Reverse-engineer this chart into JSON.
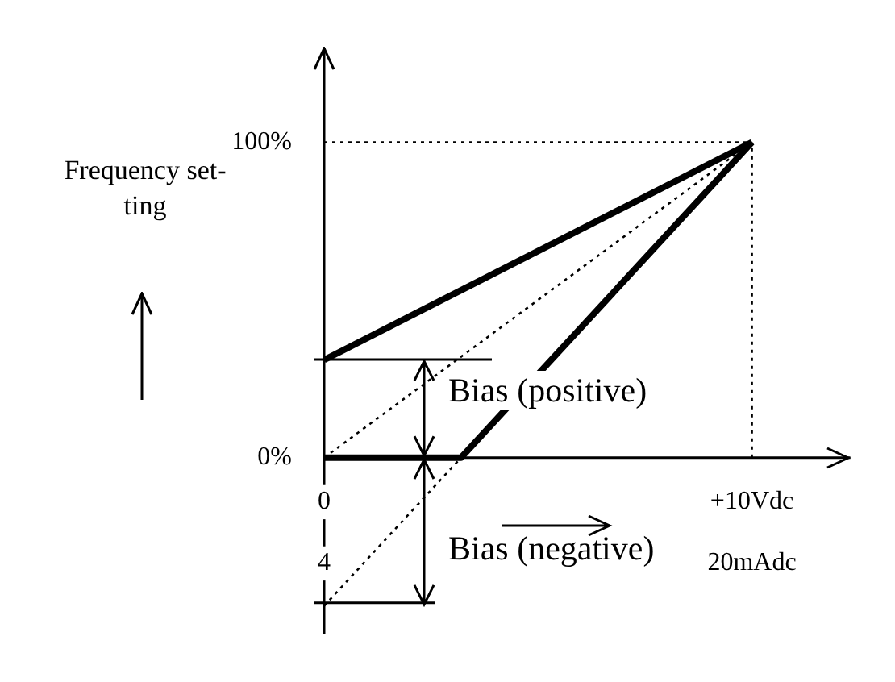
{
  "chart_data": {
    "type": "line",
    "ylabel": "Frequency set-ting",
    "xlim": [
      0,
      12.3
    ],
    "xticks": [
      0,
      {
        "value": 10,
        "label": "+10Vdc"
      }
    ],
    "x2lim": [
      4,
      23.68
    ],
    "x2ticks": [
      4,
      {
        "value": 20,
        "label": "20mAdc"
      }
    ],
    "ylim": [
      -56,
      130
    ],
    "yticks": [
      {
        "value": 0,
        "label": "0%"
      },
      {
        "value": 100,
        "label": "100%"
      }
    ],
    "series": [
      {
        "color": "#000000",
        "line_style": "solid",
        "x": [
          0,
          10
        ],
        "values": [
          31,
          100
        ]
      },
      {
        "color": "#000000",
        "line_style": "dotted",
        "x": [
          0,
          10
        ],
        "values": [
          0,
          100
        ]
      },
      {
        "color": "#000000",
        "line_style": "solid",
        "x": [
          0,
          3.2,
          10
        ],
        "values": [
          0,
          0,
          100
        ]
      },
      {
        "color": "#000000",
        "line_style": "dotted",
        "x": [
          0,
          3.2
        ],
        "values": [
          -47,
          0
        ]
      }
    ],
    "ref_lines": [
      {
        "axis": "y",
        "value": 100,
        "line_style": "dotted"
      },
      {
        "axis": "x",
        "value": 10,
        "line_style": "dotted"
      }
    ],
    "annotations": [
      {
        "text": "Bias (positive)",
        "x": 0,
        "y": 31
      },
      {
        "text": "Bias (negative)",
        "x": 0,
        "y": -47
      }
    ],
    "grid": false,
    "marker": "none"
  }
}
